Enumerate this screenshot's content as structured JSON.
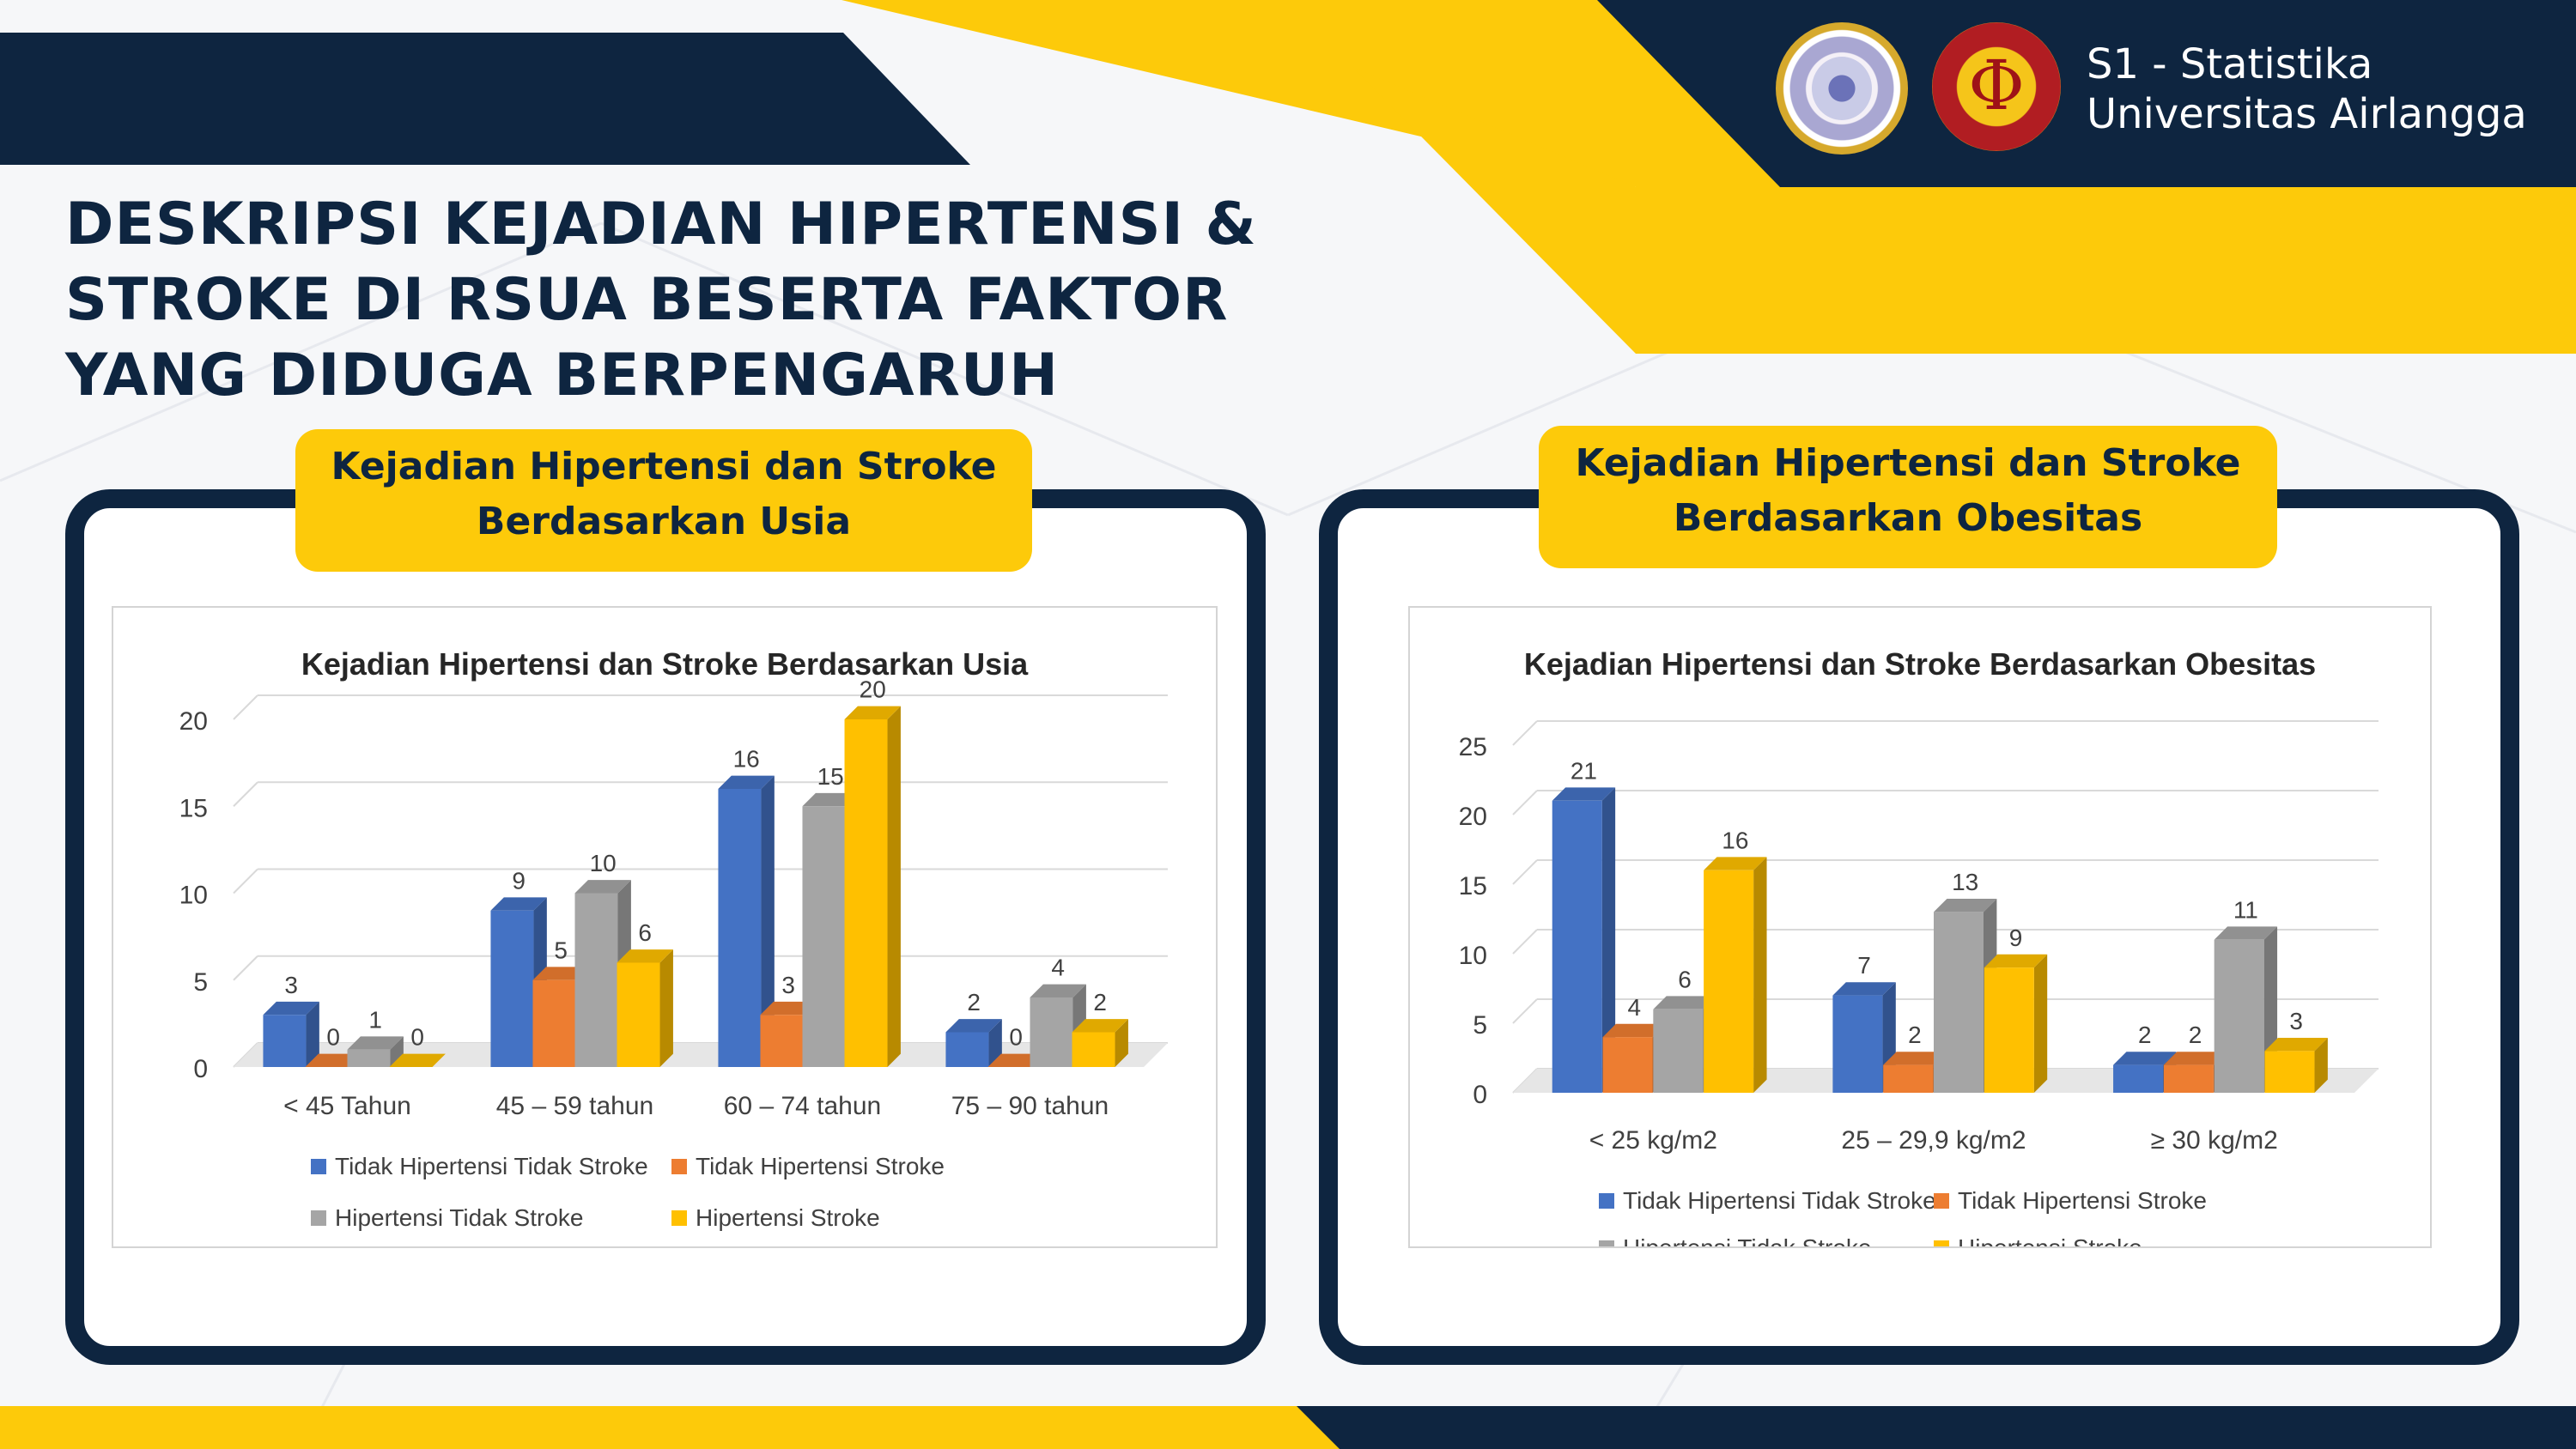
{
  "header": {
    "title": "DESKRIPSI KEJADIAN HIPERTENSI & STROKE DI RSUA BESERTA FAKTOR YANG DIDUGA BERPENGARUH",
    "brand_line1": "S1 - Statistika",
    "brand_line2": "Universitas Airlangga"
  },
  "colors": {
    "navy": "#0e2540",
    "yellow": "#fdca0a",
    "series": [
      "#4472c4",
      "#ed7d31",
      "#a5a5a5",
      "#ffc000"
    ]
  },
  "left_panel": {
    "label": "Kejadian Hipertensi dan Stroke Berdasarkan Usia"
  },
  "right_panel": {
    "label": "Kejadian Hipertensi dan Stroke Berdasarkan Obesitas"
  },
  "chart_data": [
    {
      "type": "bar",
      "title": "Kejadian Hipertensi dan Stroke Berdasarkan Usia",
      "categories": [
        "< 45 Tahun",
        "45 – 59 tahun",
        "60 – 74 tahun",
        "75 – 90 tahun"
      ],
      "series": [
        {
          "name": "Tidak  Hipertensi Tidak Stroke",
          "values": [
            3,
            9,
            16,
            2
          ]
        },
        {
          "name": "Tidak  Hipertensi Stroke",
          "values": [
            0,
            5,
            3,
            0
          ]
        },
        {
          "name": "Hipertensi Tidak Stroke",
          "values": [
            1,
            10,
            15,
            4
          ]
        },
        {
          "name": "Hipertensi Stroke",
          "values": [
            0,
            6,
            20,
            2
          ]
        }
      ],
      "ylim": [
        0,
        20
      ],
      "yticks": [
        0,
        5,
        10,
        15,
        20
      ],
      "grid": true,
      "legend": "bottom"
    },
    {
      "type": "bar",
      "title": "Kejadian Hipertensi dan Stroke Berdasarkan Obesitas",
      "categories": [
        "< 25 kg/m2",
        "25 – 29,9 kg/m2",
        "≥ 30 kg/m2"
      ],
      "series": [
        {
          "name": "Tidak  Hipertensi Tidak Stroke",
          "values": [
            21,
            7,
            2
          ]
        },
        {
          "name": "Tidak  Hipertensi Stroke",
          "values": [
            4,
            2,
            2
          ]
        },
        {
          "name": "Hipertensi Tidak Stroke",
          "values": [
            6,
            13,
            11
          ]
        },
        {
          "name": "Hipertensi Stroke",
          "values": [
            16,
            9,
            3
          ]
        }
      ],
      "ylim": [
        0,
        25
      ],
      "yticks": [
        0,
        5,
        10,
        15,
        20,
        25
      ],
      "grid": true,
      "legend": "bottom"
    }
  ]
}
